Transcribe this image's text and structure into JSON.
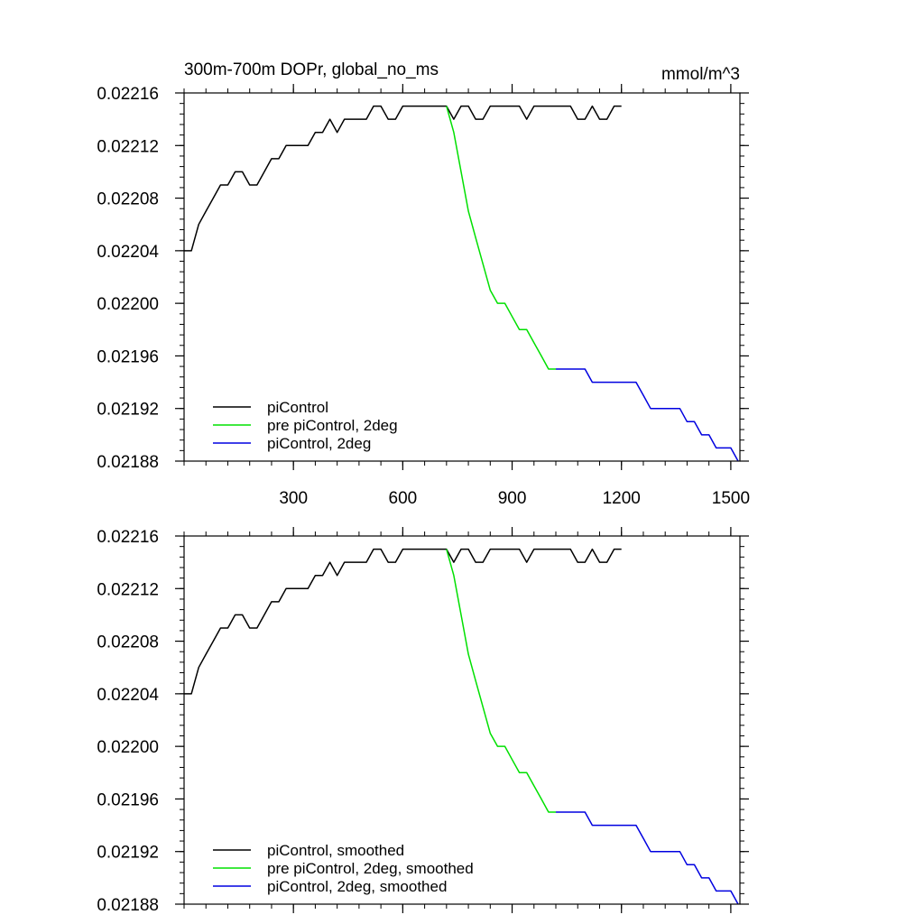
{
  "chart_data": [
    {
      "type": "line",
      "title": "300m-700m DOPr, global_no_ms",
      "units": "mmol/m^3",
      "xlabel": "",
      "ylabel": "",
      "xlim": [
        0,
        1525
      ],
      "ylim": [
        0.02188,
        0.02216
      ],
      "x_ticks": [
        300,
        600,
        900,
        1200,
        1500
      ],
      "x_tick_labels": [
        "300",
        "600",
        "900",
        "1200",
        "1500"
      ],
      "y_ticks": [
        0.02188,
        0.02192,
        0.02196,
        0.022,
        0.02204,
        0.02208,
        0.02212,
        0.02216
      ],
      "y_tick_labels": [
        "0.02188",
        "0.02192",
        "0.02196",
        "0.02200",
        "0.02204",
        "0.02208",
        "0.02212",
        "0.02216"
      ],
      "grid": false,
      "legend_position": "bottom-left",
      "series": [
        {
          "name": "piControl",
          "color": "#000000",
          "x": [
            0,
            20,
            40,
            60,
            80,
            100,
            120,
            140,
            160,
            180,
            200,
            220,
            240,
            260,
            280,
            300,
            320,
            340,
            360,
            380,
            400,
            420,
            440,
            460,
            480,
            500,
            520,
            540,
            560,
            580,
            600,
            620,
            640,
            660,
            680,
            700,
            720,
            740,
            760,
            780,
            800,
            820,
            840,
            860,
            880,
            900,
            920,
            940,
            960,
            980,
            1000,
            1020,
            1040,
            1060,
            1080,
            1100,
            1120,
            1140,
            1160,
            1180,
            1200
          ],
          "y": [
            0.02204,
            0.02204,
            0.02206,
            0.02207,
            0.02208,
            0.02209,
            0.02209,
            0.0221,
            0.0221,
            0.02209,
            0.02209,
            0.0221,
            0.02211,
            0.02211,
            0.02212,
            0.02212,
            0.02212,
            0.02212,
            0.02213,
            0.02213,
            0.02214,
            0.02213,
            0.02214,
            0.02214,
            0.02214,
            0.02214,
            0.02215,
            0.02215,
            0.02214,
            0.02214,
            0.02215,
            0.02215,
            0.02215,
            0.02215,
            0.02215,
            0.02215,
            0.02215,
            0.02214,
            0.02215,
            0.02215,
            0.02214,
            0.02214,
            0.02215,
            0.02215,
            0.02215,
            0.02215,
            0.02215,
            0.02214,
            0.02215,
            0.02215,
            0.02215,
            0.02215,
            0.02215,
            0.02215,
            0.02214,
            0.02214,
            0.02215,
            0.02214,
            0.02214,
            0.02215,
            0.02215
          ]
        },
        {
          "name": "pre piControl, 2deg",
          "color": "#00e000",
          "x": [
            720,
            740,
            760,
            780,
            800,
            820,
            840,
            860,
            880,
            900,
            920,
            940,
            960,
            980,
            1000,
            1020
          ],
          "y": [
            0.02215,
            0.02213,
            0.0221,
            0.02207,
            0.02205,
            0.02203,
            0.02201,
            0.022,
            0.022,
            0.02199,
            0.02198,
            0.02198,
            0.02197,
            0.02196,
            0.02195,
            0.02195
          ]
        },
        {
          "name": "piControl, 2deg",
          "color": "#0000e0",
          "x": [
            1020,
            1040,
            1060,
            1080,
            1100,
            1120,
            1140,
            1160,
            1180,
            1200,
            1220,
            1240,
            1260,
            1280,
            1300,
            1320,
            1340,
            1360,
            1380,
            1400,
            1420,
            1440,
            1460,
            1480,
            1500,
            1520
          ],
          "y": [
            0.02195,
            0.02195,
            0.02195,
            0.02195,
            0.02195,
            0.02194,
            0.02194,
            0.02194,
            0.02194,
            0.02194,
            0.02194,
            0.02194,
            0.02193,
            0.02192,
            0.02192,
            0.02192,
            0.02192,
            0.02192,
            0.02191,
            0.02191,
            0.0219,
            0.0219,
            0.02189,
            0.02189,
            0.02189,
            0.02188
          ]
        }
      ]
    },
    {
      "type": "line",
      "title": "",
      "units": "",
      "xlabel": "",
      "ylabel": "",
      "xlim": [
        0,
        1525
      ],
      "ylim": [
        0.02188,
        0.02216
      ],
      "x_ticks": [
        300,
        600,
        900,
        1200,
        1500
      ],
      "x_tick_labels": [],
      "y_ticks": [
        0.02188,
        0.02192,
        0.02196,
        0.022,
        0.02204,
        0.02208,
        0.02212,
        0.02216
      ],
      "y_tick_labels": [
        "0.02188",
        "0.02192",
        "0.02196",
        "0.02200",
        "0.02204",
        "0.02208",
        "0.02212",
        "0.02216"
      ],
      "grid": false,
      "legend_position": "bottom-left",
      "series": [
        {
          "name": "piControl, smoothed",
          "color": "#000000",
          "x": [
            0,
            20,
            40,
            60,
            80,
            100,
            120,
            140,
            160,
            180,
            200,
            220,
            240,
            260,
            280,
            300,
            320,
            340,
            360,
            380,
            400,
            420,
            440,
            460,
            480,
            500,
            520,
            540,
            560,
            580,
            600,
            620,
            640,
            660,
            680,
            700,
            720,
            740,
            760,
            780,
            800,
            820,
            840,
            860,
            880,
            900,
            920,
            940,
            960,
            980,
            1000,
            1020,
            1040,
            1060,
            1080,
            1100,
            1120,
            1140,
            1160,
            1180,
            1200
          ],
          "y": [
            0.02204,
            0.02204,
            0.02206,
            0.02207,
            0.02208,
            0.02209,
            0.02209,
            0.0221,
            0.0221,
            0.02209,
            0.02209,
            0.0221,
            0.02211,
            0.02211,
            0.02212,
            0.02212,
            0.02212,
            0.02212,
            0.02213,
            0.02213,
            0.02214,
            0.02213,
            0.02214,
            0.02214,
            0.02214,
            0.02214,
            0.02215,
            0.02215,
            0.02214,
            0.02214,
            0.02215,
            0.02215,
            0.02215,
            0.02215,
            0.02215,
            0.02215,
            0.02215,
            0.02214,
            0.02215,
            0.02215,
            0.02214,
            0.02214,
            0.02215,
            0.02215,
            0.02215,
            0.02215,
            0.02215,
            0.02214,
            0.02215,
            0.02215,
            0.02215,
            0.02215,
            0.02215,
            0.02215,
            0.02214,
            0.02214,
            0.02215,
            0.02214,
            0.02214,
            0.02215,
            0.02215
          ]
        },
        {
          "name": "pre piControl, 2deg, smoothed",
          "color": "#00e000",
          "x": [
            720,
            740,
            760,
            780,
            800,
            820,
            840,
            860,
            880,
            900,
            920,
            940,
            960,
            980,
            1000,
            1020
          ],
          "y": [
            0.02215,
            0.02213,
            0.0221,
            0.02207,
            0.02205,
            0.02203,
            0.02201,
            0.022,
            0.022,
            0.02199,
            0.02198,
            0.02198,
            0.02197,
            0.02196,
            0.02195,
            0.02195
          ]
        },
        {
          "name": "piControl, 2deg, smoothed",
          "color": "#0000e0",
          "x": [
            1020,
            1040,
            1060,
            1080,
            1100,
            1120,
            1140,
            1160,
            1180,
            1200,
            1220,
            1240,
            1260,
            1280,
            1300,
            1320,
            1340,
            1360,
            1380,
            1400,
            1420,
            1440,
            1460,
            1480,
            1500,
            1520
          ],
          "y": [
            0.02195,
            0.02195,
            0.02195,
            0.02195,
            0.02195,
            0.02194,
            0.02194,
            0.02194,
            0.02194,
            0.02194,
            0.02194,
            0.02194,
            0.02193,
            0.02192,
            0.02192,
            0.02192,
            0.02192,
            0.02192,
            0.02191,
            0.02191,
            0.0219,
            0.0219,
            0.02189,
            0.02189,
            0.02189,
            0.02188
          ]
        }
      ]
    }
  ]
}
